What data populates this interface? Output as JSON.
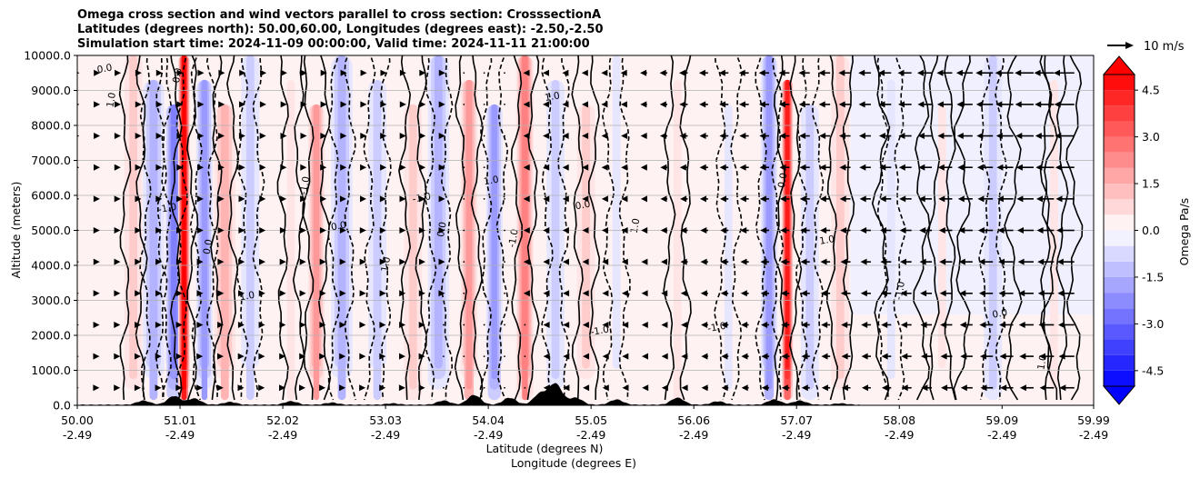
{
  "chart_data": {
    "type": "heatmap",
    "title_lines": [
      "Omega cross section and wind vectors parallel to cross section: CrosssectionA",
      "Latitudes (degrees north): 50.00,60.00, Longitudes (degrees east): -2.50,-2.50",
      "Simulation start time: 2024-11-09 00:00:00, Valid time: 2024-11-11 21:00:00"
    ],
    "xlabel_lat": "Latitude (degrees N)",
    "xlabel_lon": "Longitude (degrees E)",
    "ylabel": "Altitude (meters)",
    "ylim": [
      0,
      10000
    ],
    "xlim": [
      50.0,
      59.99
    ],
    "y_ticks": [
      "0.0",
      "1000.0",
      "2000.0",
      "3000.0",
      "4000.0",
      "5000.0",
      "6000.0",
      "7000.0",
      "8000.0",
      "9000.0",
      "10000.0"
    ],
    "y_tick_values": [
      0,
      1000,
      2000,
      3000,
      4000,
      5000,
      6000,
      7000,
      8000,
      9000,
      10000
    ],
    "x_ticks": [
      {
        "lat": "50.00",
        "lon": "-2.49",
        "value": 50.0
      },
      {
        "lat": "51.01",
        "lon": "-2.49",
        "value": 51.01
      },
      {
        "lat": "52.02",
        "lon": "-2.49",
        "value": 52.02
      },
      {
        "lat": "53.03",
        "lon": "-2.49",
        "value": 53.03
      },
      {
        "lat": "54.04",
        "lon": "-2.49",
        "value": 54.04
      },
      {
        "lat": "55.05",
        "lon": "-2.49",
        "value": 55.05
      },
      {
        "lat": "56.06",
        "lon": "-2.49",
        "value": 56.06
      },
      {
        "lat": "57.07",
        "lon": "-2.49",
        "value": 57.07
      },
      {
        "lat": "58.08",
        "lon": "-2.49",
        "value": 58.08
      },
      {
        "lat": "59.09",
        "lon": "-2.49",
        "value": 59.09
      },
      {
        "lat": "59.99",
        "lon": "-2.49",
        "value": 59.99
      }
    ],
    "grid": "horizontal",
    "colorbar": {
      "label": "Omega Pa/s",
      "range": [
        -5.0,
        5.0
      ],
      "ticks": [
        "-4.5",
        "-3.0",
        "-1.5",
        "0.0",
        "1.5",
        "3.0",
        "4.5"
      ],
      "tick_values": [
        -4.5,
        -3.0,
        -1.5,
        0.0,
        1.5,
        3.0,
        4.5
      ],
      "colormap": "bwr",
      "extend": "both"
    },
    "quiver_key": {
      "label": "10 m/s",
      "value": 10
    },
    "contour_labels": [
      "0.0",
      "1.0",
      "-1.0"
    ],
    "omega_bands": [
      {
        "lat": 50.55,
        "value": 1.0
      },
      {
        "lat": 50.75,
        "value": -1.5
      },
      {
        "lat": 50.95,
        "value": -2.5
      },
      {
        "lat": 51.05,
        "value": 4.8
      },
      {
        "lat": 51.25,
        "value": -1.8
      },
      {
        "lat": 51.45,
        "value": 1.2
      },
      {
        "lat": 51.7,
        "value": -0.8
      },
      {
        "lat": 52.1,
        "value": 0.5
      },
      {
        "lat": 52.35,
        "value": 2.0
      },
      {
        "lat": 52.6,
        "value": -1.2
      },
      {
        "lat": 52.95,
        "value": -1.0
      },
      {
        "lat": 53.3,
        "value": 0.9
      },
      {
        "lat": 53.55,
        "value": -1.1
      },
      {
        "lat": 53.85,
        "value": 1.8
      },
      {
        "lat": 54.1,
        "value": -1.6
      },
      {
        "lat": 54.4,
        "value": 2.4
      },
      {
        "lat": 54.7,
        "value": -0.9
      },
      {
        "lat": 55.0,
        "value": 0.8
      },
      {
        "lat": 55.3,
        "value": -0.5
      },
      {
        "lat": 55.9,
        "value": 0.5
      },
      {
        "lat": 56.4,
        "value": -0.4
      },
      {
        "lat": 56.8,
        "value": -1.7
      },
      {
        "lat": 56.98,
        "value": 4.5
      },
      {
        "lat": 57.2,
        "value": -1.0
      },
      {
        "lat": 57.5,
        "value": 0.6
      },
      {
        "lat": 58.0,
        "value": -0.4
      },
      {
        "lat": 58.5,
        "value": 0.4
      },
      {
        "lat": 59.0,
        "value": -0.7
      },
      {
        "lat": 59.6,
        "value": 0.3
      }
    ],
    "wind_u_by_lat": [
      {
        "lat": 50.0,
        "u": 1
      },
      {
        "lat": 51.0,
        "u": 2
      },
      {
        "lat": 52.0,
        "u": 3
      },
      {
        "lat": 53.0,
        "u": 2
      },
      {
        "lat": 54.0,
        "u": 0
      },
      {
        "lat": 55.0,
        "u": -2
      },
      {
        "lat": 56.0,
        "u": -4
      },
      {
        "lat": 57.0,
        "u": -5
      },
      {
        "lat": 58.0,
        "u": -6
      },
      {
        "lat": 59.0,
        "u": -8
      },
      {
        "lat": 60.0,
        "u": -10
      }
    ]
  }
}
